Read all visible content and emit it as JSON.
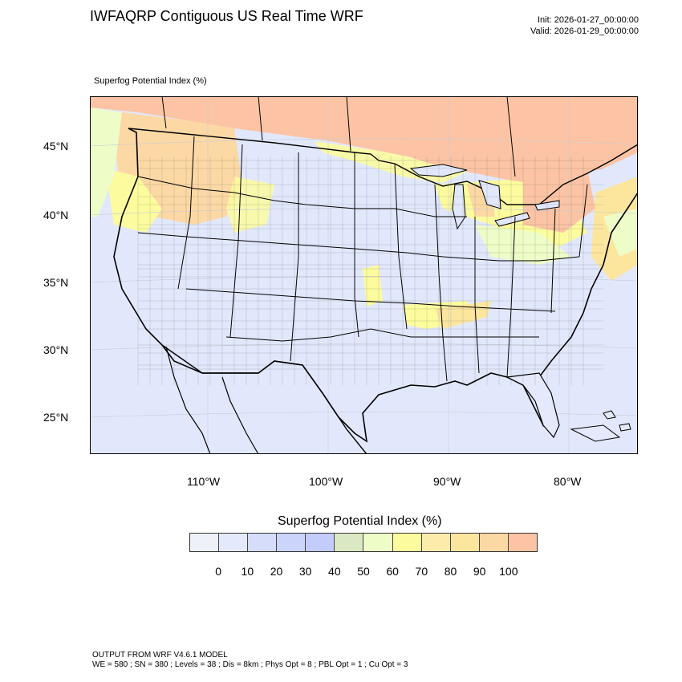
{
  "header": {
    "title": "IWFAQRP Contiguous US Real Time WRF",
    "init": "Init: 2026-01-27_00:00:00",
    "valid": "Valid: 2026-01-29_00:00:00"
  },
  "map": {
    "subtitle": "Superfog Potential Index   (%)",
    "lat_labels": [
      "45°N",
      "40°N",
      "35°N",
      "30°N",
      "25°N"
    ],
    "lon_labels": [
      "110°W",
      "100°W",
      "90°W",
      "80°W"
    ]
  },
  "legend": {
    "title": "Superfog Potential Index  (%)",
    "colors": [
      "#eef1f8",
      "#e4e9fb",
      "#d5ddfb",
      "#cbd5fb",
      "#c4ccfb",
      "#dbe8c4",
      "#eefcc8",
      "#fcfc9e",
      "#fcecac",
      "#fce69e",
      "#fcd8a4",
      "#fcc4a4"
    ],
    "labels": [
      "0",
      "10",
      "20",
      "30",
      "40",
      "50",
      "60",
      "70",
      "80",
      "90",
      "100"
    ]
  },
  "footer": {
    "line1": "OUTPUT FROM WRF V4.6.1 MODEL",
    "line2": "WE = 580 ; SN = 380 ; Levels = 38 ; Dis = 8km ; Phys Opt = 8 ; PBL Opt = 1 ; Cu Opt = 3"
  },
  "colors": {
    "land": "#e4e9fb",
    "ocean": "#e4e9fb",
    "canada_high": "#fcc4a4",
    "yellow": "#fcfc9e",
    "green": "#eefcc8",
    "orange": "#fce69e",
    "border": "#000000"
  }
}
